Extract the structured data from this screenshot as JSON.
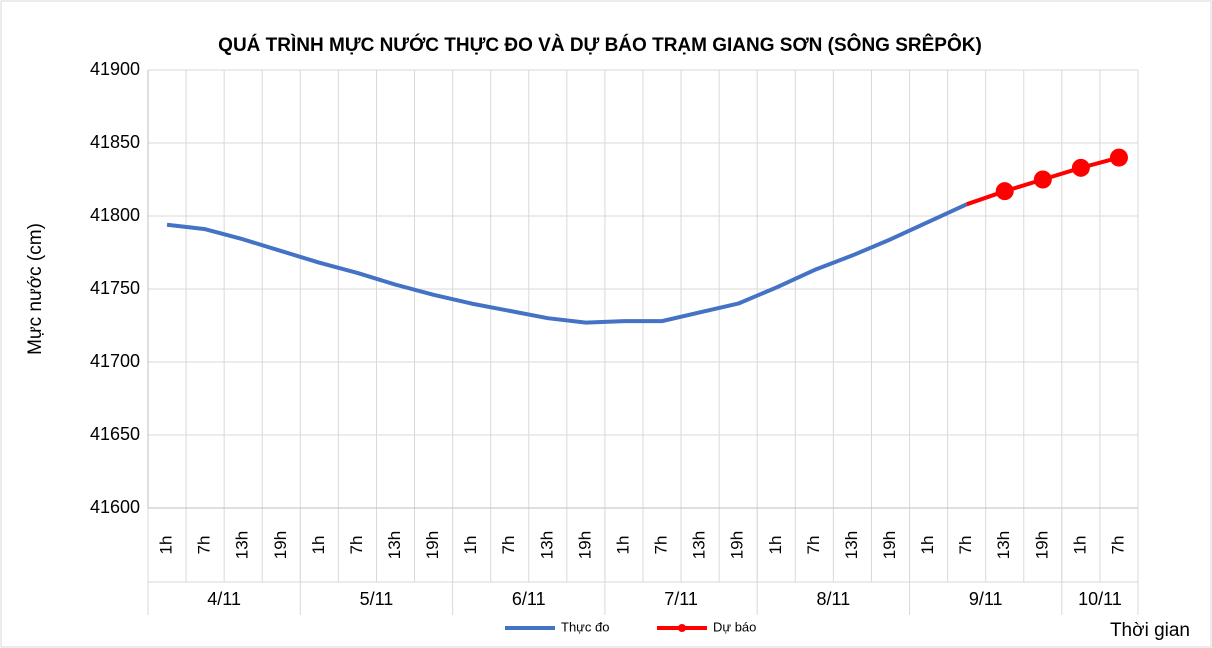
{
  "chart_data": {
    "type": "line",
    "title": "QUÁ TRÌNH MỰC NƯỚC THỰC ĐO VÀ DỰ BÁO TRẠM GIANG SƠN (SÔNG SRÊPÔK)",
    "y_label": "Mực nước (cm)",
    "x_label": "Thời gian",
    "categories": [
      "1h",
      "7h",
      "13h",
      "19h",
      "1h",
      "7h",
      "13h",
      "19h",
      "1h",
      "7h",
      "13h",
      "19h",
      "1h",
      "7h",
      "13h",
      "19h",
      "1h",
      "7h",
      "13h",
      "19h",
      "1h",
      "7h",
      "13h",
      "19h",
      "1h",
      "7h"
    ],
    "date_groups": [
      {
        "label": "4/11",
        "span": 4
      },
      {
        "label": "5/11",
        "span": 4
      },
      {
        "label": "6/11",
        "span": 4
      },
      {
        "label": "7/11",
        "span": 4
      },
      {
        "label": "8/11",
        "span": 4
      },
      {
        "label": "9/11",
        "span": 4
      },
      {
        "label": "10/11",
        "span": 2
      }
    ],
    "series": [
      {
        "name": "Thực đo",
        "color": "#4472c4",
        "markers": false,
        "values": [
          41794,
          41791,
          41784,
          41776,
          41768,
          41761,
          41753,
          41746,
          41740,
          41735,
          41730,
          41727,
          41728,
          41728,
          41734,
          41740,
          41751,
          41763,
          41773,
          41784,
          41796,
          41808,
          null,
          null,
          null,
          null
        ]
      },
      {
        "name": "Dự báo",
        "color": "#ff0000",
        "markers": true,
        "values": [
          null,
          null,
          null,
          null,
          null,
          null,
          null,
          null,
          null,
          null,
          null,
          null,
          null,
          null,
          null,
          null,
          null,
          null,
          null,
          null,
          null,
          41808,
          41817,
          41825,
          41833,
          41840
        ]
      }
    ],
    "ylim": [
      41600,
      41900
    ],
    "yticks": [
      41600,
      41650,
      41700,
      41750,
      41800,
      41850,
      41900
    ],
    "grid": true,
    "legend": "bottom"
  }
}
